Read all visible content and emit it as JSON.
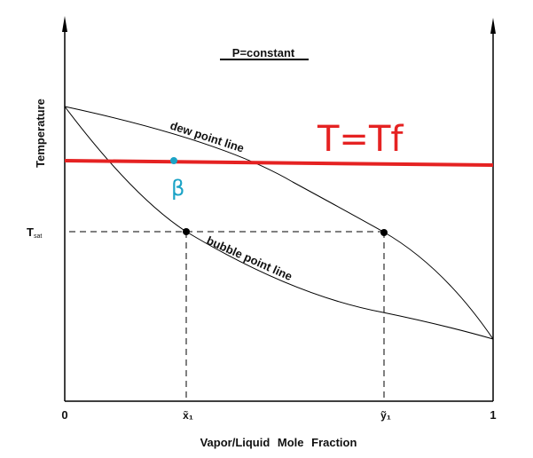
{
  "title": "P=constant",
  "y_axis_label": "Temperature",
  "x_axis_label": "Vapor/Liquid Mole Fraction",
  "x_ticks": {
    "zero": "0",
    "x1": "x̃₁",
    "y1": "ỹ₁",
    "one": "1"
  },
  "t_sat_label": {
    "main": "T",
    "sub": "sat"
  },
  "curves": {
    "dew": "dew point line",
    "bubble": "bubble point line"
  },
  "annotations": {
    "feed_line_label": "T=Tf",
    "point_label": "β",
    "feed_line_color": "#e52222",
    "point_color": "#1ba3c6"
  }
}
